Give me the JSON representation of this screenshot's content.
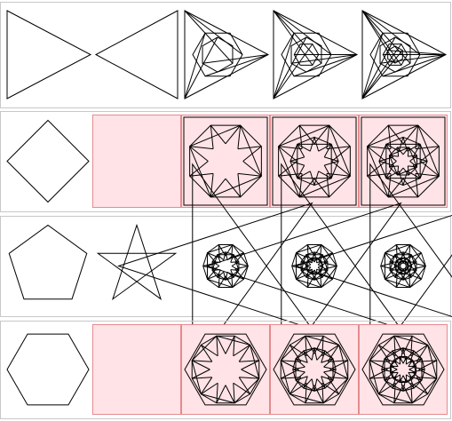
{
  "colors": {
    "panel_border": "#c8c8c8",
    "stroke": "#000000",
    "pink_fill": "#ffe3e6",
    "pink_border": "#e58a8f"
  },
  "rows": [
    {
      "base": "triangle",
      "cells": [
        {
          "state": "base",
          "pink": false
        },
        {
          "state": "star",
          "pink": false
        },
        {
          "state": "iter1",
          "pink": false
        },
        {
          "state": "iter2",
          "pink": false
        },
        {
          "state": "iter3",
          "pink": false
        }
      ]
    },
    {
      "base": "square",
      "cells": [
        {
          "state": "base",
          "pink": false
        },
        {
          "state": "empty",
          "pink": true
        },
        {
          "state": "iter1",
          "pink": true
        },
        {
          "state": "iter2",
          "pink": true
        },
        {
          "state": "iter3",
          "pink": true
        }
      ]
    },
    {
      "base": "pentagon",
      "cells": [
        {
          "state": "base",
          "pink": false
        },
        {
          "state": "star",
          "pink": false
        },
        {
          "state": "iter1",
          "pink": false
        },
        {
          "state": "iter2",
          "pink": false
        },
        {
          "state": "iter3",
          "pink": false
        }
      ]
    },
    {
      "base": "hexagon",
      "cells": [
        {
          "state": "base",
          "pink": false
        },
        {
          "state": "empty",
          "pink": true
        },
        {
          "state": "iter1",
          "pink": true
        },
        {
          "state": "iter2",
          "pink": true
        },
        {
          "state": "iter3",
          "pink": true
        }
      ]
    }
  ]
}
